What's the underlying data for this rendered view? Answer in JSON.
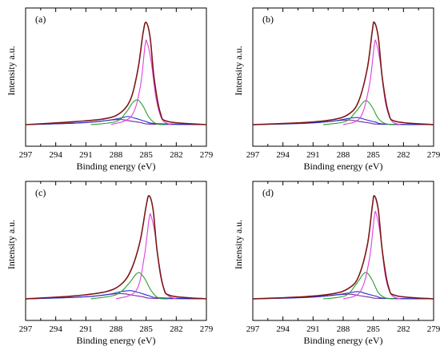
{
  "chart_data": [
    {
      "type": "line",
      "panel_label": "(a)",
      "xlabel": "Binding energy (eV)",
      "ylabel": "Intensity a.u.",
      "xlim": [
        297,
        279
      ],
      "x_reversed": true,
      "ylim": [
        0,
        1.0
      ],
      "xticks": [
        297,
        294,
        291,
        288,
        285,
        282,
        279
      ],
      "series": [
        {
          "values": [
            [
              297,
              0
            ],
            [
              292,
              0.03
            ],
            [
              289,
              0.06
            ],
            [
              287.5,
              0.12
            ],
            [
              286.5,
              0.26
            ],
            [
              285.8,
              0.55
            ],
            [
              285.3,
              0.9
            ],
            [
              285.0,
              1.0
            ],
            [
              284.6,
              0.85
            ],
            [
              284.2,
              0.45
            ],
            [
              283.6,
              0.12
            ],
            [
              282.8,
              0.03
            ],
            [
              279,
              0
            ]
          ],
          "color": "#7b1818"
        },
        {
          "values": [
            [
              288.5,
              0
            ],
            [
              286.5,
              0.08
            ],
            [
              285.6,
              0.36
            ],
            [
              285.1,
              0.78
            ],
            [
              284.9,
              0.8
            ],
            [
              284.5,
              0.62
            ],
            [
              284.0,
              0.25
            ],
            [
              283.4,
              0.05
            ],
            [
              282.5,
              0
            ]
          ],
          "color": "#e040e0"
        },
        {
          "values": [
            [
              290.5,
              0
            ],
            [
              288.0,
              0.03
            ],
            [
              287.0,
              0.12
            ],
            [
              286.3,
              0.22
            ],
            [
              285.8,
              0.24
            ],
            [
              285.3,
              0.18
            ],
            [
              284.7,
              0.07
            ],
            [
              284.0,
              0.01
            ],
            [
              283.0,
              0
            ]
          ],
          "color": "#2e9e2e"
        },
        {
          "values": [
            [
              297,
              0
            ],
            [
              292,
              0.015
            ],
            [
              289,
              0.04
            ],
            [
              287.5,
              0.065
            ],
            [
              286.8,
              0.08
            ],
            [
              286.0,
              0.06
            ],
            [
              285.0,
              0.03
            ],
            [
              284.0,
              0.01
            ],
            [
              279,
              0
            ]
          ],
          "color": "#2030d0"
        },
        {
          "values": [
            [
              297,
              0
            ],
            [
              291,
              0.02
            ],
            [
              288.5,
              0.045
            ],
            [
              287.5,
              0.05
            ],
            [
              286.5,
              0.035
            ],
            [
              285.5,
              0.02
            ],
            [
              284.5,
              0.005
            ],
            [
              279,
              0
            ]
          ],
          "color": "#7a2aa0"
        }
      ]
    },
    {
      "type": "line",
      "panel_label": "(b)",
      "xlabel": "Binding energy (eV)",
      "ylabel": "Intensity a.u.",
      "xlim": [
        297,
        279
      ],
      "x_reversed": true,
      "ylim": [
        0,
        1.0
      ],
      "xticks": [
        297,
        294,
        291,
        288,
        285,
        282,
        279
      ],
      "series": [
        {
          "values": [
            [
              297,
              0
            ],
            [
              292,
              0.02
            ],
            [
              289,
              0.05
            ],
            [
              287.5,
              0.1
            ],
            [
              286.5,
              0.22
            ],
            [
              285.6,
              0.55
            ],
            [
              285.1,
              0.92
            ],
            [
              284.9,
              1.0
            ],
            [
              284.5,
              0.85
            ],
            [
              284.1,
              0.45
            ],
            [
              283.5,
              0.12
            ],
            [
              282.7,
              0.03
            ],
            [
              279,
              0
            ]
          ],
          "color": "#7b1818"
        },
        {
          "values": [
            [
              288.0,
              0
            ],
            [
              286.3,
              0.07
            ],
            [
              285.4,
              0.38
            ],
            [
              284.9,
              0.78
            ],
            [
              284.7,
              0.8
            ],
            [
              284.3,
              0.6
            ],
            [
              283.8,
              0.22
            ],
            [
              283.2,
              0.04
            ],
            [
              282.3,
              0
            ]
          ],
          "color": "#e040e0"
        },
        {
          "values": [
            [
              290.0,
              0
            ],
            [
              287.8,
              0.03
            ],
            [
              286.8,
              0.12
            ],
            [
              286.0,
              0.22
            ],
            [
              285.6,
              0.23
            ],
            [
              285.1,
              0.17
            ],
            [
              284.5,
              0.06
            ],
            [
              283.8,
              0.01
            ],
            [
              282.8,
              0
            ]
          ],
          "color": "#2e9e2e"
        },
        {
          "values": [
            [
              297,
              0
            ],
            [
              292,
              0.012
            ],
            [
              289,
              0.035
            ],
            [
              287.5,
              0.06
            ],
            [
              286.6,
              0.07
            ],
            [
              285.8,
              0.05
            ],
            [
              284.8,
              0.025
            ],
            [
              283.8,
              0.005
            ],
            [
              279,
              0
            ]
          ],
          "color": "#2030d0"
        },
        {
          "values": [
            [
              297,
              0
            ],
            [
              291,
              0.018
            ],
            [
              288.5,
              0.04
            ],
            [
              287.3,
              0.045
            ],
            [
              286.3,
              0.03
            ],
            [
              285.3,
              0.015
            ],
            [
              284.3,
              0.004
            ],
            [
              279,
              0
            ]
          ],
          "color": "#7a2aa0"
        }
      ]
    },
    {
      "type": "line",
      "panel_label": "(c)",
      "xlabel": "Binding energy (eV)",
      "ylabel": "Intensity a.u.",
      "xlim": [
        297,
        279
      ],
      "x_reversed": true,
      "ylim": [
        0,
        1.0
      ],
      "xticks": [
        297,
        294,
        291,
        288,
        285,
        282,
        279
      ],
      "series": [
        {
          "values": [
            [
              297,
              0
            ],
            [
              292,
              0.03
            ],
            [
              289,
              0.07
            ],
            [
              287.5,
              0.14
            ],
            [
              286.5,
              0.28
            ],
            [
              285.6,
              0.56
            ],
            [
              285.0,
              0.9
            ],
            [
              284.7,
              1.0
            ],
            [
              284.3,
              0.86
            ],
            [
              283.9,
              0.46
            ],
            [
              283.3,
              0.12
            ],
            [
              282.5,
              0.03
            ],
            [
              279,
              0
            ]
          ],
          "color": "#7b1818"
        },
        {
          "values": [
            [
              288.0,
              0
            ],
            [
              286.0,
              0.08
            ],
            [
              285.2,
              0.4
            ],
            [
              284.7,
              0.78
            ],
            [
              284.5,
              0.8
            ],
            [
              284.1,
              0.62
            ],
            [
              283.6,
              0.24
            ],
            [
              283.0,
              0.05
            ],
            [
              282.0,
              0
            ]
          ],
          "color": "#e040e0"
        },
        {
          "values": [
            [
              290.5,
              0
            ],
            [
              288.0,
              0.04
            ],
            [
              286.8,
              0.14
            ],
            [
              286.0,
              0.24
            ],
            [
              285.6,
              0.25
            ],
            [
              285.1,
              0.19
            ],
            [
              284.5,
              0.08
            ],
            [
              283.8,
              0.01
            ],
            [
              282.8,
              0
            ]
          ],
          "color": "#2e9e2e"
        },
        {
          "values": [
            [
              297,
              0
            ],
            [
              292,
              0.015
            ],
            [
              289,
              0.04
            ],
            [
              287.5,
              0.07
            ],
            [
              286.6,
              0.08
            ],
            [
              285.7,
              0.06
            ],
            [
              284.7,
              0.03
            ],
            [
              283.7,
              0.01
            ],
            [
              279,
              0
            ]
          ],
          "color": "#2030d0"
        },
        {
          "values": [
            [
              297,
              0
            ],
            [
              291,
              0.02
            ],
            [
              288.5,
              0.045
            ],
            [
              287.3,
              0.05
            ],
            [
              286.3,
              0.035
            ],
            [
              285.3,
              0.02
            ],
            [
              284.3,
              0.005
            ],
            [
              279,
              0
            ]
          ],
          "color": "#7a2aa0"
        }
      ]
    },
    {
      "type": "line",
      "panel_label": "(d)",
      "xlabel": "Binding energy (eV)",
      "ylabel": "Intensity a.u.",
      "xlim": [
        297,
        279
      ],
      "x_reversed": true,
      "ylim": [
        0,
        1.0
      ],
      "xticks": [
        297,
        294,
        291,
        288,
        285,
        282,
        279
      ],
      "series": [
        {
          "values": [
            [
              297,
              0
            ],
            [
              292,
              0.02
            ],
            [
              289,
              0.05
            ],
            [
              287.5,
              0.1
            ],
            [
              286.5,
              0.21
            ],
            [
              285.6,
              0.52
            ],
            [
              285.1,
              0.9
            ],
            [
              284.9,
              1.0
            ],
            [
              284.5,
              0.86
            ],
            [
              284.1,
              0.46
            ],
            [
              283.5,
              0.12
            ],
            [
              282.7,
              0.03
            ],
            [
              279,
              0
            ]
          ],
          "color": "#7b1818"
        },
        {
          "values": [
            [
              288.0,
              0
            ],
            [
              286.3,
              0.07
            ],
            [
              285.4,
              0.38
            ],
            [
              284.9,
              0.8
            ],
            [
              284.7,
              0.82
            ],
            [
              284.3,
              0.62
            ],
            [
              283.8,
              0.22
            ],
            [
              283.2,
              0.04
            ],
            [
              282.3,
              0
            ]
          ],
          "color": "#e040e0"
        },
        {
          "values": [
            [
              290.0,
              0
            ],
            [
              287.8,
              0.03
            ],
            [
              286.8,
              0.13
            ],
            [
              286.0,
              0.24
            ],
            [
              285.6,
              0.25
            ],
            [
              285.1,
              0.18
            ],
            [
              284.5,
              0.06
            ],
            [
              283.8,
              0.01
            ],
            [
              282.8,
              0
            ]
          ],
          "color": "#2e9e2e"
        },
        {
          "values": [
            [
              297,
              0
            ],
            [
              292,
              0.012
            ],
            [
              289,
              0.035
            ],
            [
              287.3,
              0.06
            ],
            [
              286.5,
              0.07
            ],
            [
              285.7,
              0.05
            ],
            [
              284.7,
              0.025
            ],
            [
              283.7,
              0.005
            ],
            [
              279,
              0
            ]
          ],
          "color": "#2030d0"
        },
        {
          "values": [
            [
              297,
              0
            ],
            [
              291,
              0.018
            ],
            [
              288.5,
              0.04
            ],
            [
              287.3,
              0.045
            ],
            [
              286.3,
              0.03
            ],
            [
              285.3,
              0.015
            ],
            [
              284.3,
              0.004
            ],
            [
              279,
              0
            ]
          ],
          "color": "#7a2aa0"
        }
      ]
    }
  ]
}
